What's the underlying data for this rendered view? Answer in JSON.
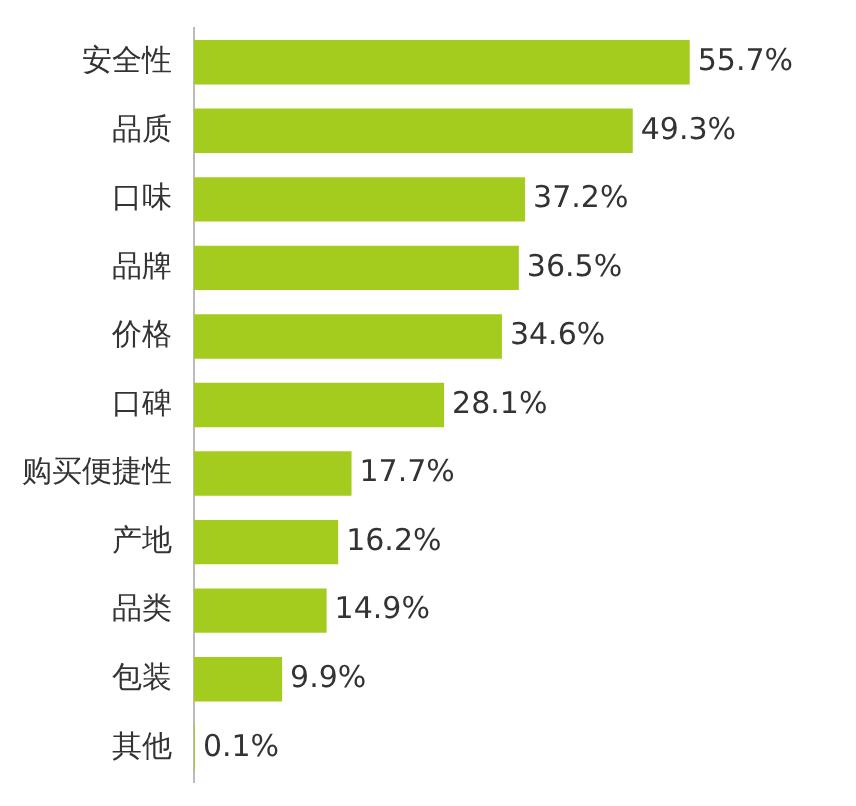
{
  "chart_data": {
    "type": "bar",
    "orientation": "horizontal",
    "categories": [
      "安全性",
      "品质",
      "口味",
      "品牌",
      "价格",
      "口碑",
      "购买便捷性",
      "产地",
      "品类",
      "包装",
      "其他"
    ],
    "values": [
      55.7,
      49.3,
      37.2,
      36.5,
      34.6,
      28.1,
      17.7,
      16.2,
      14.9,
      9.9,
      0.1
    ],
    "value_labels": [
      "55.7%",
      "49.3%",
      "37.2%",
      "36.5%",
      "34.6%",
      "28.1%",
      "17.7%",
      "16.2%",
      "14.9%",
      "9.9%",
      "0.1%"
    ],
    "color": "#a3cc1e",
    "legend": false
  }
}
